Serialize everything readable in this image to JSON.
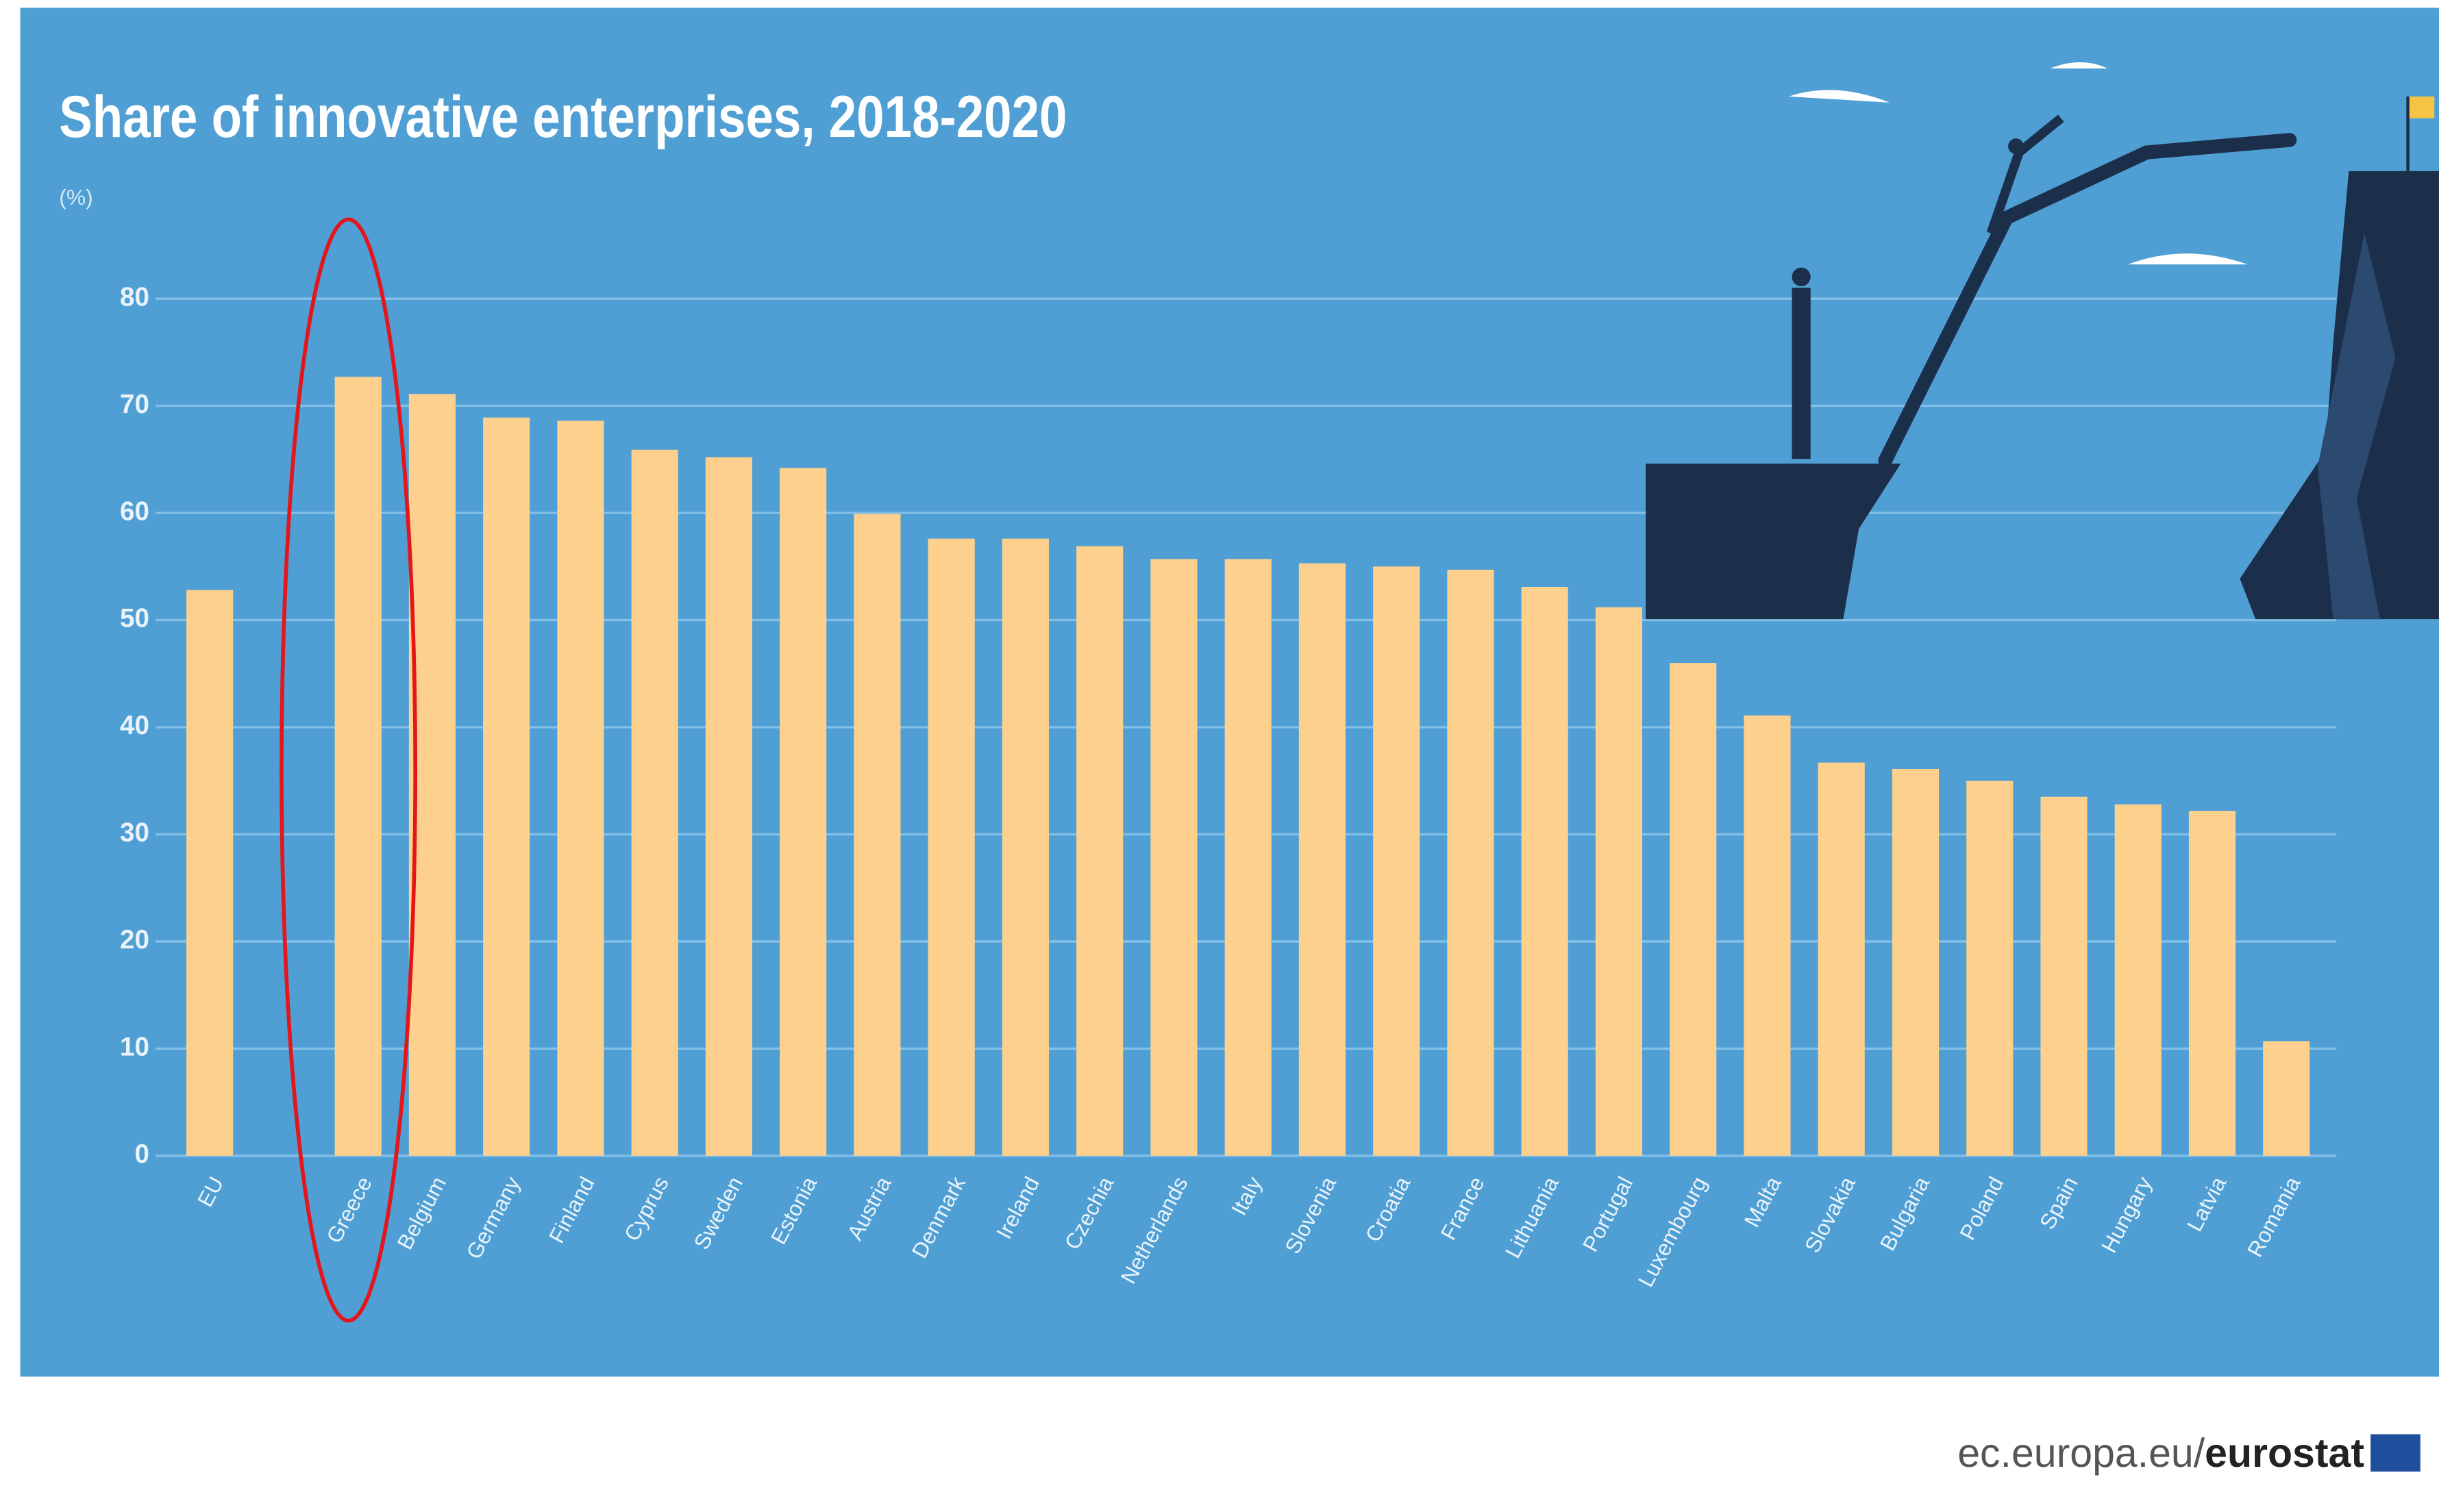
{
  "chart_data": {
    "type": "bar",
    "title": "Share of innovative enterprises, 2018-2020",
    "unit_label": "(%)",
    "categories": [
      "EU",
      null,
      "Greece",
      "Belgium",
      "Germany",
      "Finland",
      "Cyprus",
      "Sweden",
      "Estonia",
      "Austria",
      "Denmark",
      "Ireland",
      "Czechia",
      "Netherlands",
      "Italy",
      "Slovenia",
      "Croatia",
      "France",
      "Lithuania",
      "Portugal",
      "Luxembourg",
      "Malta",
      "Slovakia",
      "Bulgaria",
      "Poland",
      "Spain",
      "Hungary",
      "Latvia",
      "Romania"
    ],
    "values": [
      52.8,
      null,
      72.7,
      71.1,
      68.9,
      68.6,
      65.9,
      65.2,
      64.2,
      59.9,
      57.6,
      57.6,
      56.9,
      55.7,
      55.7,
      55.3,
      55.0,
      54.7,
      53.1,
      51.2,
      46.0,
      41.1,
      36.7,
      36.1,
      35.0,
      33.5,
      32.8,
      32.2,
      10.7
    ],
    "color": "#fdd08e",
    "ylim": [
      0,
      80
    ],
    "yticks": [
      0,
      10,
      20,
      30,
      40,
      50,
      60,
      70,
      80
    ],
    "grid": true,
    "source_prefix": "ec.europa.eu/",
    "source_brand": "eurostat"
  }
}
